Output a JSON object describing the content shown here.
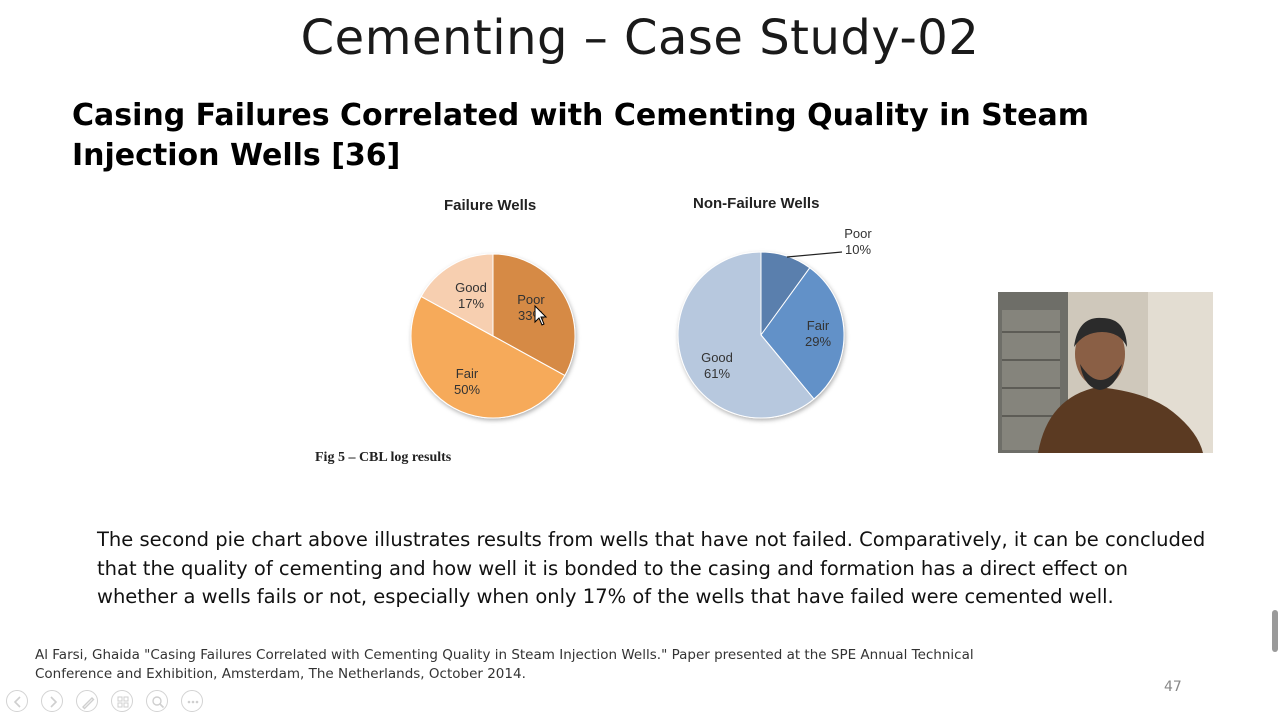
{
  "slide": {
    "title": "Cementing – Case Study-02",
    "subtitle": "Casing Failures Correlated with Cementing Quality in Steam Injection Wells [36]",
    "figure_caption": "Fig 5 – CBL log results",
    "body_text": "The second pie chart above illustrates results from wells that have not failed. Comparatively, it can be concluded that the quality of cementing and how well it is bonded to the casing and formation has a direct effect on whether a wells fails or not, especially when only 17% of the wells that have failed were cemented well.",
    "reference": "Al Farsi, Ghaida \"Casing Failures Correlated with Cementing Quality in Steam Injection Wells.\" Paper presented at the SPE Annual Technical Conference and Exhibition, Amsterdam, The Netherlands, October 2014.",
    "page_number": "47"
  },
  "chart_data": [
    {
      "type": "pie",
      "title": "Failure Wells",
      "categories": [
        "Poor",
        "Fair",
        "Good"
      ],
      "values": [
        33,
        50,
        17
      ],
      "labels": [
        "33%",
        "50%",
        "17%"
      ],
      "colors": [
        "#d68a45",
        "#f6aa5a",
        "#f7cfb0"
      ]
    },
    {
      "type": "pie",
      "title": "Non-Failure Wells",
      "categories": [
        "Poor",
        "Fair",
        "Good"
      ],
      "values": [
        10,
        29,
        61
      ],
      "labels": [
        "10%",
        "29%",
        "61%"
      ],
      "colors": [
        "#5a7fad",
        "#6291c8",
        "#b7c8de"
      ]
    }
  ],
  "toolbar": {
    "icons": [
      "previous-icon",
      "next-icon",
      "pen-icon",
      "slides-icon",
      "zoom-icon",
      "more-icon"
    ]
  }
}
